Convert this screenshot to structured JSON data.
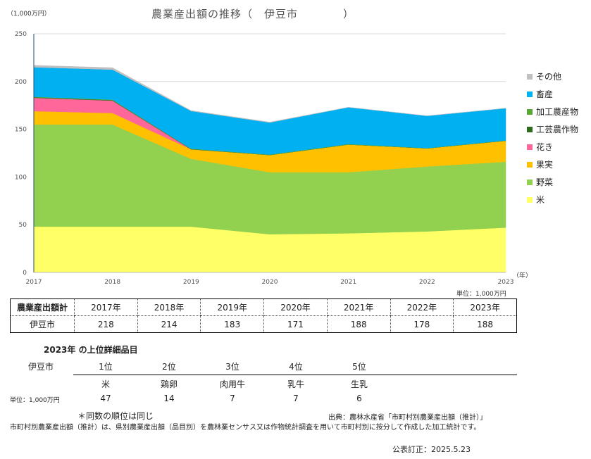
{
  "chart_data": {
    "type": "area",
    "stacked": true,
    "title": "農業産出額の推移（　伊豆市　　　　）",
    "ylabel": "（1,000万円）",
    "xlabel": "（年）",
    "ylim": [
      0,
      250
    ],
    "yticks": [
      0,
      50,
      100,
      150,
      200,
      250
    ],
    "categories": [
      "2017",
      "2018",
      "2019",
      "2020",
      "2021",
      "2022",
      "2023"
    ],
    "grid": true,
    "legend": "right",
    "series": [
      {
        "name": "米",
        "color": "#ffff66",
        "values": [
          48,
          48,
          48,
          40,
          41,
          43,
          47
        ]
      },
      {
        "name": "野菜",
        "color": "#92d050",
        "values": [
          107,
          107,
          71,
          65,
          64,
          68,
          69
        ]
      },
      {
        "name": "果実",
        "color": "#ffc000",
        "values": [
          14,
          12,
          10,
          18,
          29,
          19,
          22
        ]
      },
      {
        "name": "花き",
        "color": "#ff6699",
        "values": [
          14,
          13,
          0,
          0,
          0,
          0,
          0
        ]
      },
      {
        "name": "工芸農作物",
        "color": "#2e6b1f",
        "values": [
          0.5,
          0.5,
          0.3,
          0,
          0,
          0,
          0
        ]
      },
      {
        "name": "加工農産物",
        "color": "#5aa832",
        "values": [
          0.5,
          0.5,
          0.3,
          0.5,
          0.5,
          0.3,
          0.3
        ]
      },
      {
        "name": "畜産",
        "color": "#00b0f0",
        "values": [
          31,
          31.5,
          39.5,
          33.5,
          38.5,
          33.7,
          33.7
        ]
      },
      {
        "name": "その他",
        "color": "#c0c0c0",
        "values": [
          2,
          2,
          0.5,
          0.5,
          0,
          0,
          0
        ]
      }
    ]
  },
  "unit_label": "単位：1,000万円",
  "totals": {
    "header": "農業産出額計",
    "years": [
      "2017年",
      "2018年",
      "2019年",
      "2020年",
      "2021年",
      "2022年",
      "2023年"
    ],
    "row_label": "伊豆市",
    "values": [
      "218",
      "214",
      "183",
      "171",
      "188",
      "178",
      "188"
    ]
  },
  "top": {
    "title": "2023年 の上位詳細品目",
    "city": "伊豆市",
    "ranks": [
      "1位",
      "2位",
      "3位",
      "4位",
      "5位"
    ],
    "items": [
      "米",
      "鶏卵",
      "肉用牛",
      "乳牛",
      "生乳"
    ],
    "values": [
      "47",
      "14",
      "7",
      "7",
      "6"
    ],
    "unit": "単位：1,000万円"
  },
  "note_same": "＊同数の順位は同じ",
  "source": "出典：農林水産省「市町村別農業産出額（推計）」",
  "description": "市町村別農業産出額（推計）は、県別農業産出額（品目別）を農林業センサス又は作物統計調査を用いて市町村別に按分して作成した加工統計です。",
  "revised": "公表訂正：2025.5.23"
}
